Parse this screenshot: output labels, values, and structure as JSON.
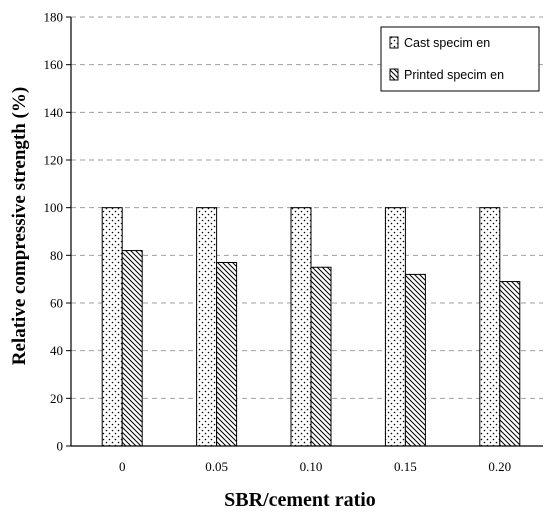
{
  "chart_data": {
    "type": "bar",
    "title": "",
    "xlabel": "SBR/cement ratio",
    "ylabel": "Relative compressive strength (%)",
    "categories": [
      "0",
      "0.05",
      "0.10",
      "0.15",
      "0.20"
    ],
    "ylim": [
      0,
      180
    ],
    "yticks": [
      0,
      20,
      40,
      60,
      80,
      100,
      120,
      140,
      160,
      180
    ],
    "grid": "horizontal dashed",
    "legend_position": "top-right",
    "series": [
      {
        "name": "Cast specim en",
        "values": [
          100,
          100,
          100,
          100,
          100
        ],
        "pattern": "dots"
      },
      {
        "name": "Printed specim en",
        "values": [
          82,
          77,
          75,
          72,
          69
        ],
        "pattern": "diagonal-hatch"
      }
    ]
  }
}
